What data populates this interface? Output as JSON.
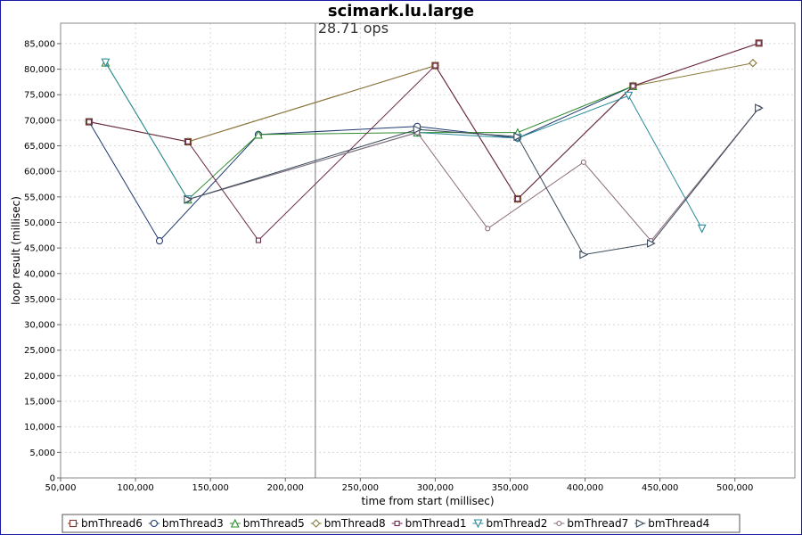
{
  "chart_data": {
    "type": "line",
    "title": "scimark.lu.large",
    "marker_label": "28.71 ops",
    "marker_x": 220000,
    "xlabel": "time from start (millisec)",
    "ylabel": "loop result (millisec)",
    "xlim": [
      50000,
      540000
    ],
    "ylim": [
      0,
      89000
    ],
    "xticks": [
      50000,
      100000,
      150000,
      200000,
      250000,
      300000,
      350000,
      400000,
      450000,
      500000
    ],
    "xtick_labels": [
      "50,000",
      "100,000",
      "150,000",
      "200,000",
      "250,000",
      "300,000",
      "350,000",
      "400,000",
      "450,000",
      "500,000"
    ],
    "yticks": [
      0,
      5000,
      10000,
      15000,
      20000,
      25000,
      30000,
      35000,
      40000,
      45000,
      50000,
      55000,
      60000,
      65000,
      70000,
      75000,
      80000,
      85000
    ],
    "ytick_labels": [
      "0",
      "5,000",
      "10,000",
      "15,000",
      "20,000",
      "25,000",
      "30,000",
      "35,000",
      "40,000",
      "45,000",
      "50,000",
      "55,000",
      "60,000",
      "65,000",
      "70,000",
      "75,000",
      "80,000",
      "85,000"
    ],
    "grid": true,
    "legend_position": "bottom",
    "series": [
      {
        "name": "bmThread6",
        "color": "#7a3b2e",
        "marker": "square",
        "x": [
          69000,
          135000,
          300000,
          355000,
          432000,
          516000
        ],
        "y": [
          69700,
          65800,
          80700,
          54600,
          76700,
          85100
        ]
      },
      {
        "name": "bmThread3",
        "color": "#1f3a6e",
        "marker": "circle",
        "x": [
          69000,
          116000,
          182000,
          288000,
          355000,
          432000
        ],
        "y": [
          69700,
          46400,
          67200,
          68800,
          66500,
          76700
        ]
      },
      {
        "name": "bmThread5",
        "color": "#2f8a2f",
        "marker": "triangle-up",
        "x": [
          80000,
          135000,
          182000,
          288000,
          355000,
          432000
        ],
        "y": [
          81300,
          54500,
          67200,
          67600,
          67600,
          76700
        ]
      },
      {
        "name": "bmThread8",
        "color": "#8a7a3a",
        "marker": "diamond",
        "x": [
          69000,
          135000,
          300000,
          355000,
          432000,
          512000
        ],
        "y": [
          69700,
          65800,
          80700,
          54600,
          76700,
          81200
        ]
      },
      {
        "name": "bmThread1",
        "color": "#6a2a4a",
        "marker": "square-small",
        "x": [
          69000,
          135000,
          182000,
          300000,
          355000,
          432000,
          516000
        ],
        "y": [
          69700,
          65800,
          46500,
          80700,
          54600,
          76700,
          85100
        ]
      },
      {
        "name": "bmThread2",
        "color": "#2a8a9a",
        "marker": "triangle-down",
        "x": [
          80000,
          135000,
          288000,
          355000,
          429000,
          478000
        ],
        "y": [
          81300,
          54500,
          67600,
          66500,
          74800,
          48800
        ]
      },
      {
        "name": "bmThread7",
        "color": "#8a6a7a",
        "marker": "circle-small",
        "x": [
          135000,
          288000,
          335000,
          399000,
          444000,
          516000
        ],
        "y": [
          54500,
          67600,
          48800,
          61800,
          46400,
          72400
        ]
      },
      {
        "name": "bmThread4",
        "color": "#3a4a5a",
        "marker": "triangle-right",
        "x": [
          135000,
          288000,
          355000,
          399000,
          444000,
          516000
        ],
        "y": [
          54500,
          68200,
          66800,
          43700,
          45900,
          72400
        ]
      }
    ]
  }
}
